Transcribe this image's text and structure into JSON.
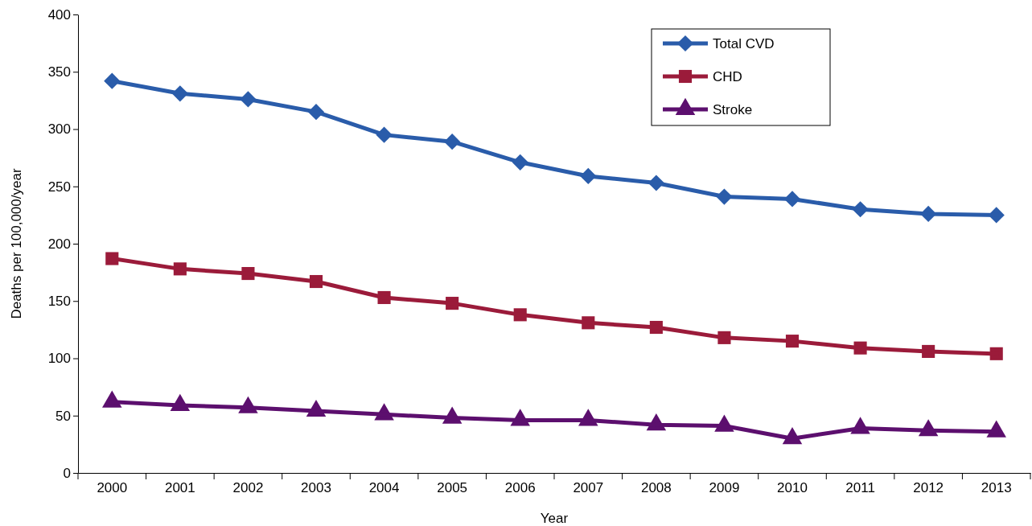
{
  "chart_data": {
    "type": "line",
    "xlabel": "Year",
    "ylabel": "Deaths per 100,000/year",
    "categories": [
      "2000",
      "2001",
      "2002",
      "2003",
      "2004",
      "2005",
      "2006",
      "2007",
      "2008",
      "2009",
      "2010",
      "2011",
      "2012",
      "2013"
    ],
    "ylim": [
      0,
      400
    ],
    "yticks": [
      0,
      50,
      100,
      150,
      200,
      250,
      300,
      350,
      400
    ],
    "grid": false,
    "legend": "top right",
    "line_style": "solid",
    "series": [
      {
        "name": "Total CVD",
        "color": "#2a5caa",
        "marker": "diamond",
        "values": [
          342,
          331,
          326,
          315,
          295,
          289,
          271,
          259,
          253,
          241,
          239,
          230,
          226,
          225
        ]
      },
      {
        "name": "CHD",
        "color": "#9b1b3a",
        "marker": "square",
        "values": [
          187,
          178,
          174,
          167,
          153,
          148,
          138,
          131,
          127,
          118,
          115,
          109,
          106,
          104
        ]
      },
      {
        "name": "Stroke",
        "color": "#5c0f6e",
        "marker": "triangle",
        "values": [
          62,
          59,
          57,
          54,
          51,
          48,
          46,
          46,
          42,
          41,
          30,
          39,
          37,
          36
        ]
      }
    ]
  }
}
